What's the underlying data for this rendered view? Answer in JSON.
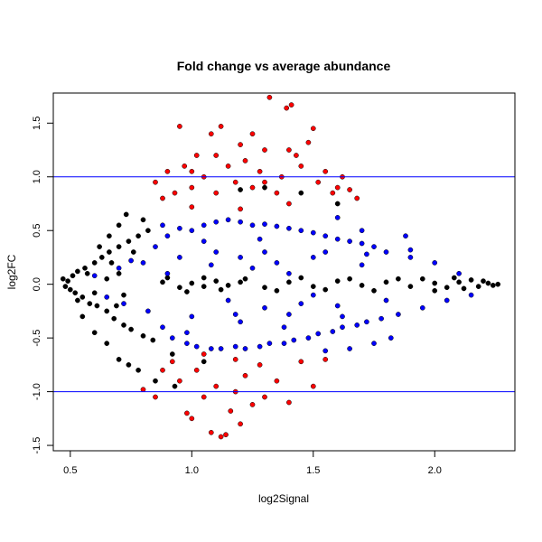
{
  "chart_data": {
    "type": "scatter",
    "title": "Fold change vs average abundance",
    "xlabel": "log2Signal",
    "ylabel": "log2FC",
    "xlim": [
      0.43,
      2.33
    ],
    "ylim": [
      -1.55,
      1.78
    ],
    "x_ticks": [
      0.5,
      1.0,
      1.5,
      2.0
    ],
    "x_tick_labels": [
      "0.5",
      "1.0",
      "1.5",
      "2.0"
    ],
    "y_ticks": [
      -1.5,
      -1.0,
      -0.5,
      0.0,
      0.5,
      1.0,
      1.5
    ],
    "y_tick_labels": [
      "-1.5",
      "-1.0",
      "-0.5",
      "0.0",
      "0.5",
      "1.0",
      "1.5"
    ],
    "grid": false,
    "legend": "none",
    "reference_lines": [
      {
        "axis": "y",
        "value": 1.0,
        "color": "#0000ff"
      },
      {
        "axis": "y",
        "value": -1.0,
        "color": "#0000ff"
      }
    ],
    "colors": {
      "not_significant": "#000000",
      "significant": "#0000ff",
      "large_fold_change": "#ff0000",
      "point_outline": "#000000"
    },
    "series": [
      {
        "color": "#000000",
        "points": [
          [
            0.47,
            0.05
          ],
          [
            0.48,
            -0.02
          ],
          [
            0.49,
            0.03
          ],
          [
            0.5,
            -0.05
          ],
          [
            0.51,
            0.08
          ],
          [
            0.52,
            -0.08
          ],
          [
            0.53,
            0.12
          ],
          [
            0.55,
            -0.12
          ],
          [
            0.56,
            0.15
          ],
          [
            0.58,
            -0.18
          ],
          [
            0.6,
            0.2
          ],
          [
            0.61,
            -0.2
          ],
          [
            0.63,
            0.25
          ],
          [
            0.65,
            -0.25
          ],
          [
            0.66,
            0.3
          ],
          [
            0.68,
            -0.32
          ],
          [
            0.7,
            0.35
          ],
          [
            0.72,
            -0.38
          ],
          [
            0.74,
            0.4
          ],
          [
            0.75,
            -0.42
          ],
          [
            0.78,
            0.45
          ],
          [
            0.8,
            -0.48
          ],
          [
            0.82,
            0.5
          ],
          [
            0.84,
            -0.52
          ],
          [
            0.7,
            0.1
          ],
          [
            0.72,
            -0.1
          ],
          [
            0.65,
            0.05
          ],
          [
            0.6,
            -0.08
          ],
          [
            0.88,
            0.02
          ],
          [
            0.95,
            -0.03
          ],
          [
            1.0,
            0.01
          ],
          [
            1.05,
            -0.02
          ],
          [
            1.1,
            0.03
          ],
          [
            1.15,
            -0.01
          ],
          [
            1.2,
            0.02
          ],
          [
            1.3,
            -0.03
          ],
          [
            1.4,
            0.02
          ],
          [
            1.5,
            -0.02
          ],
          [
            1.6,
            0.03
          ],
          [
            1.7,
            -0.01
          ],
          [
            1.8,
            0.02
          ],
          [
            1.9,
            -0.02
          ],
          [
            2.0,
            0.01
          ],
          [
            2.05,
            -0.03
          ],
          [
            2.1,
            0.02
          ],
          [
            2.15,
            0.04
          ],
          [
            2.18,
            -0.02
          ],
          [
            2.2,
            0.03
          ],
          [
            2.22,
            0.01
          ],
          [
            2.24,
            -0.01
          ],
          [
            2.26,
            0.0
          ],
          [
            1.95,
            0.05
          ],
          [
            2.0,
            -0.06
          ],
          [
            2.08,
            0.06
          ],
          [
            2.12,
            -0.04
          ],
          [
            0.9,
            0.06
          ],
          [
            0.98,
            -0.07
          ],
          [
            1.05,
            0.06
          ],
          [
            1.12,
            -0.05
          ],
          [
            1.22,
            0.05
          ],
          [
            1.35,
            -0.06
          ],
          [
            1.45,
            0.06
          ],
          [
            1.55,
            -0.05
          ],
          [
            1.65,
            0.05
          ],
          [
            1.75,
            -0.06
          ],
          [
            1.85,
            0.05
          ],
          [
            0.62,
            0.35
          ],
          [
            0.66,
            0.45
          ],
          [
            0.7,
            0.55
          ],
          [
            0.73,
            0.65
          ],
          [
            0.55,
            -0.3
          ],
          [
            0.6,
            -0.45
          ],
          [
            0.65,
            -0.55
          ],
          [
            0.7,
            -0.7
          ],
          [
            0.74,
            -0.75
          ],
          [
            0.78,
            -0.8
          ],
          [
            0.85,
            -0.9
          ],
          [
            0.93,
            -0.95
          ],
          [
            0.8,
            0.6
          ],
          [
            1.6,
            0.75
          ],
          [
            1.45,
            0.85
          ],
          [
            1.3,
            0.9
          ],
          [
            1.2,
            0.88
          ],
          [
            0.92,
            -0.65
          ],
          [
            1.05,
            -0.72
          ],
          [
            0.67,
            0.2
          ],
          [
            0.69,
            -0.2
          ],
          [
            0.57,
            0.1
          ],
          [
            0.53,
            -0.15
          ],
          [
            0.76,
            0.3
          ]
        ]
      },
      {
        "color": "#0000ff",
        "points": [
          [
            0.8,
            0.2
          ],
          [
            0.82,
            -0.25
          ],
          [
            0.85,
            0.35
          ],
          [
            0.88,
            -0.4
          ],
          [
            0.9,
            0.45
          ],
          [
            0.92,
            -0.5
          ],
          [
            0.95,
            0.52
          ],
          [
            0.98,
            -0.55
          ],
          [
            1.0,
            0.5
          ],
          [
            1.02,
            -0.58
          ],
          [
            1.05,
            0.55
          ],
          [
            1.08,
            -0.6
          ],
          [
            1.1,
            0.58
          ],
          [
            1.12,
            -0.6
          ],
          [
            1.15,
            0.6
          ],
          [
            1.18,
            -0.58
          ],
          [
            1.2,
            0.58
          ],
          [
            1.22,
            -0.6
          ],
          [
            1.25,
            0.55
          ],
          [
            1.28,
            -0.58
          ],
          [
            1.3,
            0.56
          ],
          [
            1.32,
            -0.55
          ],
          [
            1.35,
            0.54
          ],
          [
            1.38,
            -0.55
          ],
          [
            1.4,
            0.52
          ],
          [
            1.42,
            -0.52
          ],
          [
            1.45,
            0.5
          ],
          [
            1.48,
            -0.5
          ],
          [
            1.5,
            0.48
          ],
          [
            1.52,
            -0.46
          ],
          [
            1.55,
            0.45
          ],
          [
            1.58,
            -0.44
          ],
          [
            1.6,
            0.42
          ],
          [
            1.62,
            -0.4
          ],
          [
            1.65,
            0.4
          ],
          [
            1.68,
            -0.38
          ],
          [
            1.7,
            0.38
          ],
          [
            1.72,
            -0.35
          ],
          [
            1.75,
            0.35
          ],
          [
            1.78,
            -0.32
          ],
          [
            1.8,
            0.3
          ],
          [
            1.85,
            -0.28
          ],
          [
            1.9,
            0.25
          ],
          [
            1.95,
            -0.22
          ],
          [
            2.0,
            0.2
          ],
          [
            2.05,
            -0.15
          ],
          [
            1.6,
            0.62
          ],
          [
            1.7,
            0.5
          ],
          [
            1.88,
            0.45
          ],
          [
            1.9,
            0.32
          ],
          [
            1.82,
            -0.5
          ],
          [
            1.75,
            -0.55
          ],
          [
            1.65,
            -0.6
          ],
          [
            1.55,
            -0.62
          ],
          [
            0.95,
            0.25
          ],
          [
            1.0,
            -0.3
          ],
          [
            1.1,
            0.3
          ],
          [
            1.2,
            -0.35
          ],
          [
            1.3,
            0.3
          ],
          [
            1.4,
            -0.28
          ],
          [
            1.5,
            0.25
          ],
          [
            1.6,
            -0.2
          ],
          [
            1.7,
            0.18
          ],
          [
            1.8,
            -0.15
          ],
          [
            0.7,
            0.15
          ],
          [
            0.72,
            -0.18
          ],
          [
            0.75,
            0.22
          ],
          [
            0.65,
            -0.12
          ],
          [
            0.6,
            0.08
          ],
          [
            1.25,
            0.15
          ],
          [
            1.15,
            -0.15
          ],
          [
            1.35,
            0.2
          ],
          [
            1.45,
            -0.18
          ],
          [
            1.05,
            0.4
          ],
          [
            0.98,
            -0.45
          ],
          [
            1.28,
            0.42
          ],
          [
            1.38,
            -0.4
          ],
          [
            1.55,
            0.3
          ],
          [
            1.62,
            -0.3
          ],
          [
            0.9,
            0.1
          ],
          [
            1.2,
            0.25
          ],
          [
            1.3,
            -0.22
          ],
          [
            2.1,
            0.1
          ],
          [
            2.15,
            -0.1
          ],
          [
            0.88,
            0.55
          ],
          [
            1.4,
            0.1
          ],
          [
            1.5,
            -0.1
          ],
          [
            1.08,
            0.18
          ],
          [
            1.18,
            -0.28
          ],
          [
            1.72,
            0.28
          ]
        ]
      },
      {
        "color": "#ff0000",
        "points": [
          [
            0.85,
            0.95
          ],
          [
            0.88,
            0.8
          ],
          [
            0.9,
            1.05
          ],
          [
            0.93,
            0.85
          ],
          [
            0.95,
            1.47
          ],
          [
            0.97,
            1.1
          ],
          [
            1.0,
            0.9
          ],
          [
            1.02,
            1.2
          ],
          [
            1.05,
            1.0
          ],
          [
            1.08,
            1.4
          ],
          [
            1.1,
            0.85
          ],
          [
            1.12,
            1.47
          ],
          [
            1.15,
            1.1
          ],
          [
            1.18,
            0.95
          ],
          [
            1.2,
            1.3
          ],
          [
            1.22,
            1.15
          ],
          [
            1.25,
            0.9
          ],
          [
            1.28,
            1.05
          ],
          [
            1.3,
            1.25
          ],
          [
            1.32,
            1.74
          ],
          [
            1.35,
            0.85
          ],
          [
            1.37,
            1.0
          ],
          [
            1.39,
            1.64
          ],
          [
            1.41,
            1.67
          ],
          [
            1.43,
            1.2
          ],
          [
            1.45,
            1.1
          ],
          [
            1.48,
            1.32
          ],
          [
            1.5,
            1.45
          ],
          [
            1.52,
            0.95
          ],
          [
            1.55,
            1.05
          ],
          [
            1.58,
            0.85
          ],
          [
            1.6,
            0.9
          ],
          [
            1.62,
            1.0
          ],
          [
            1.65,
            0.88
          ],
          [
            1.68,
            0.8
          ],
          [
            1.4,
            0.75
          ],
          [
            1.2,
            0.7
          ],
          [
            1.0,
            0.72
          ],
          [
            0.92,
            -0.72
          ],
          [
            0.95,
            -0.9
          ],
          [
            0.98,
            -1.2
          ],
          [
            1.0,
            -1.25
          ],
          [
            1.02,
            -0.8
          ],
          [
            1.05,
            -1.05
          ],
          [
            1.08,
            -1.38
          ],
          [
            1.1,
            -0.95
          ],
          [
            1.12,
            -1.42
          ],
          [
            1.14,
            -1.4
          ],
          [
            1.16,
            -1.18
          ],
          [
            1.18,
            -1.0
          ],
          [
            1.2,
            -1.3
          ],
          [
            1.22,
            -0.85
          ],
          [
            1.25,
            -1.12
          ],
          [
            1.28,
            -0.75
          ],
          [
            1.3,
            -1.05
          ],
          [
            1.35,
            -0.9
          ],
          [
            1.4,
            -1.1
          ],
          [
            1.45,
            -0.72
          ],
          [
            1.5,
            -0.95
          ],
          [
            1.55,
            -0.7
          ],
          [
            0.85,
            -1.05
          ],
          [
            0.88,
            -0.8
          ],
          [
            0.8,
            -0.98
          ],
          [
            1.3,
            0.95
          ],
          [
            1.1,
            1.2
          ],
          [
            1.0,
            1.05
          ],
          [
            1.4,
            1.25
          ],
          [
            1.25,
            1.4
          ],
          [
            1.18,
            -0.7
          ],
          [
            1.05,
            -0.65
          ]
        ]
      }
    ]
  }
}
